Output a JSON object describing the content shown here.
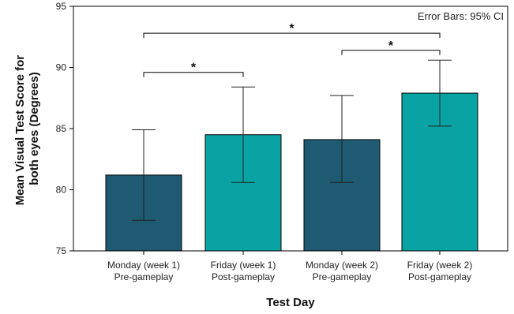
{
  "chart_data": {
    "type": "bar",
    "title": "",
    "xlabel": "Test Day",
    "ylabel": "Mean Visual Test Score for both eyes (Degrees)",
    "ylabel_lines": [
      "Mean Visual Test Score for",
      "both eyes (Degrees)"
    ],
    "ylim": [
      75,
      95
    ],
    "yticks": [
      75,
      80,
      85,
      90,
      95
    ],
    "grid": false,
    "annotation": "Error Bars: 95% CI",
    "categories": [
      [
        "Monday (week 1)",
        "Pre-gameplay"
      ],
      [
        "Friday (week 1)",
        "Post-gameplay"
      ],
      [
        "Monday (week 2)",
        "Pre-gameplay"
      ],
      [
        "Friday (week 2)",
        "Post-gameplay"
      ]
    ],
    "values": [
      81.2,
      84.5,
      84.1,
      87.9
    ],
    "ci_low": [
      77.5,
      80.6,
      80.6,
      85.2
    ],
    "ci_high": [
      84.9,
      88.4,
      87.7,
      90.6
    ],
    "colors": [
      "#1f5a73",
      "#0aa3a3",
      "#1f5a73",
      "#0aa3a3"
    ],
    "significance": [
      {
        "from": 0,
        "to": 3,
        "y": 92.8,
        "label": "*"
      },
      {
        "from": 2,
        "to": 3,
        "y": 91.4,
        "label": "*"
      },
      {
        "from": 0,
        "to": 1,
        "y": 89.6,
        "label": "*"
      }
    ]
  }
}
